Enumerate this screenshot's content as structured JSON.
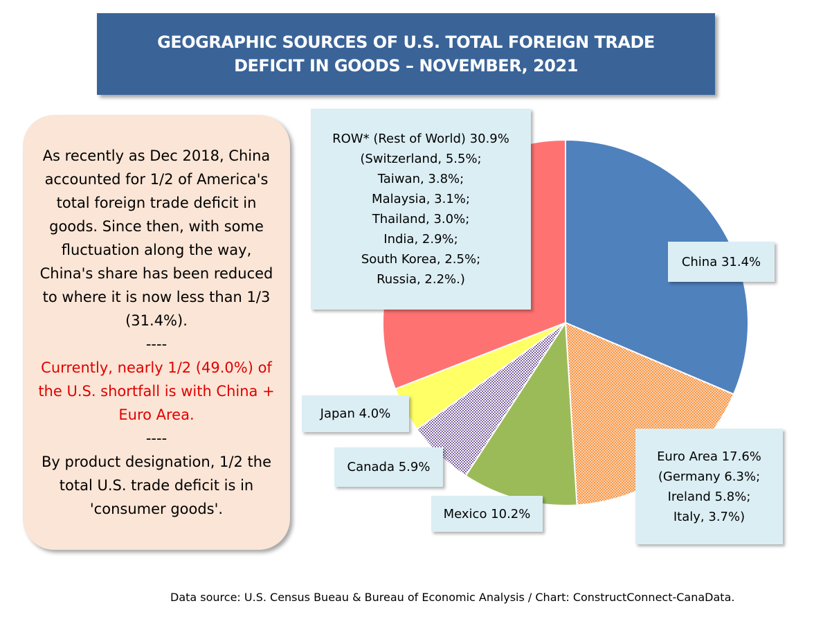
{
  "title": {
    "line1": "GEOGRAPHIC SOURCES OF U.S. TOTAL FOREIGN TRADE",
    "line2": "DEFICIT IN GOODS – NOVEMBER, 2021"
  },
  "note": {
    "para1": "As recently as Dec 2018, China accounted for 1/2 of America's total foreign trade deficit in goods. Since then, with some fluctuation along the way, China's share has been reduced to where it is now less than 1/3 (31.4%).",
    "sep1": "----",
    "para2": "Currently, nearly 1/2 (49.0%) of the U.S. shortfall is with China + Euro Area.",
    "sep2": "----",
    "para3": "By product designation, 1/2 the total U.S. trade deficit is in 'consumer goods'."
  },
  "chart_data": {
    "type": "pie",
    "slices": [
      {
        "name": "China",
        "value": 31.4,
        "color": "#4f81bd",
        "pattern": "solid",
        "label_lines": [
          "China 31.4%"
        ]
      },
      {
        "name": "Euro Area",
        "value": 17.6,
        "color": "#f79646",
        "pattern": "dots",
        "label_lines": [
          "Euro Area 17.6%",
          "(Germany 6.3%;",
          "Ireland 5.8%;",
          "Italy, 3.7%)"
        ]
      },
      {
        "name": "Mexico",
        "value": 10.2,
        "color": "#9bbb59",
        "pattern": "solid",
        "label_lines": [
          "Mexico 10.2%"
        ]
      },
      {
        "name": "Canada",
        "value": 5.9,
        "color": "#8064a2",
        "pattern": "checker",
        "label_lines": [
          "Canada 5.9%"
        ]
      },
      {
        "name": "Japan",
        "value": 4.0,
        "color": "#ffff66",
        "pattern": "solid",
        "label_lines": [
          "Japan 4.0%"
        ]
      },
      {
        "name": "ROW* (Rest of World)",
        "value": 30.9,
        "color": "#ff7272",
        "pattern": "solid",
        "label_lines": [
          "ROW* (Rest of World) 30.9%",
          "(Switzerland, 5.5%;",
          "Taiwan, 3.8%;",
          "Malaysia, 3.1%;",
          "Thailand, 3.0%;",
          "India, 2.9%;",
          "South Korea, 2.5%;",
          "Russia, 2.2%.)"
        ]
      }
    ]
  },
  "source": "Data source: U.S. Census Bueau & Bureau of Economic Analysis / Chart: ConstructConnect-CanaData."
}
